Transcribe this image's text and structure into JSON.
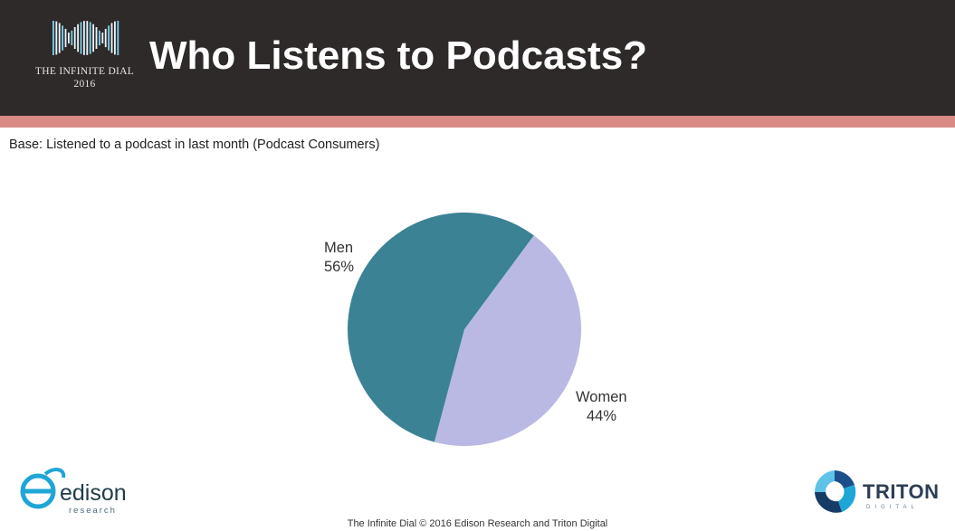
{
  "header": {
    "title": "Who Listens to Podcasts?",
    "logo_line1": "THE INFINITE DIAL",
    "logo_line2": "2016"
  },
  "subtitle": "Base: Listened to a podcast in last month (Podcast Consumers)",
  "chart_data": {
    "type": "pie",
    "title": "",
    "categories": [
      "Men",
      "Women"
    ],
    "values": [
      56,
      44
    ],
    "labels": [
      "56%",
      "44%"
    ],
    "colors": [
      "#3a8294",
      "#b9b9e3"
    ]
  },
  "logos": {
    "left_name": "edison",
    "left_sub": "research",
    "right_name": "TRITON",
    "right_sub": "DIGITAL"
  },
  "footer": "The Infinite Dial   © 2016 Edison Research and Triton Digital",
  "colors": {
    "header_bg": "#2f2a2a",
    "accent_bar": "#d98a85"
  }
}
